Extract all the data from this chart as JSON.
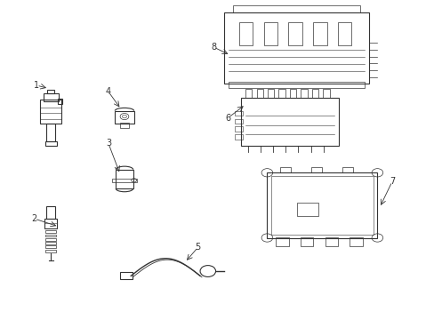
{
  "title": "",
  "background_color": "#ffffff",
  "line_color": "#333333",
  "label_color": "#000000",
  "fig_width": 4.89,
  "fig_height": 3.6,
  "dpi": 100
}
